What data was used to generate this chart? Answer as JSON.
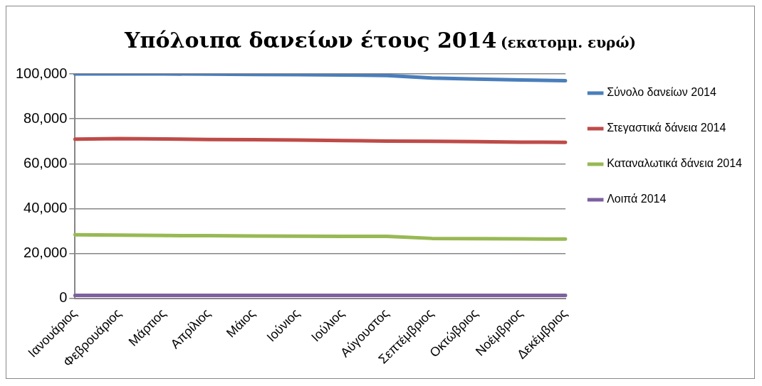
{
  "chart_data": {
    "type": "line",
    "title": "Υπόλοιπα δανείων έτους 2014",
    "subtitle": "(εκατομμ. ευρώ)",
    "categories": [
      "Ιανουάριος",
      "Φεβρουάριος",
      "Μάρτιος",
      "Απρίλιος",
      "Μάιος",
      "Ιούνιος",
      "Ιούλιος",
      "Αύγουστος",
      "Σεπτέμβριος",
      "Οκτώβριος",
      "Νοέμβριος",
      "Δεκέμβριος"
    ],
    "series": [
      {
        "name": "Σύνολο δανείων 2014",
        "color": "#4a7ebb",
        "values": [
          100000,
          100000,
          100000,
          99900,
          99800,
          99700,
          99500,
          99300,
          98200,
          97700,
          97300,
          97000
        ]
      },
      {
        "name": "Στεγαστικά δάνεια 2014",
        "color": "#be4b48",
        "values": [
          70900,
          71200,
          71000,
          70800,
          70700,
          70500,
          70300,
          70100,
          70000,
          69800,
          69600,
          69500
        ]
      },
      {
        "name": "Καταναλωτικά δάνεια 2014",
        "color": "#98b954",
        "values": [
          28300,
          28200,
          28000,
          27900,
          27800,
          27700,
          27600,
          27600,
          26700,
          26600,
          26500,
          26400
        ]
      },
      {
        "name": "Λοιπά 2014",
        "color": "#7d60a0",
        "values": [
          1300,
          1300,
          1300,
          1300,
          1300,
          1300,
          1300,
          1300,
          1300,
          1300,
          1300,
          1300
        ]
      }
    ],
    "ylim": [
      0,
      100000
    ],
    "yticks": [
      {
        "value": 0,
        "label": "0"
      },
      {
        "value": 20000,
        "label": "20,000"
      },
      {
        "value": 40000,
        "label": "40,000"
      },
      {
        "value": 60000,
        "label": "60,000"
      },
      {
        "value": 80000,
        "label": "80,000"
      },
      {
        "value": 100000,
        "label": "100,000"
      }
    ],
    "grid": "y",
    "legend": "right",
    "marker": "none",
    "line_style": "solid"
  }
}
